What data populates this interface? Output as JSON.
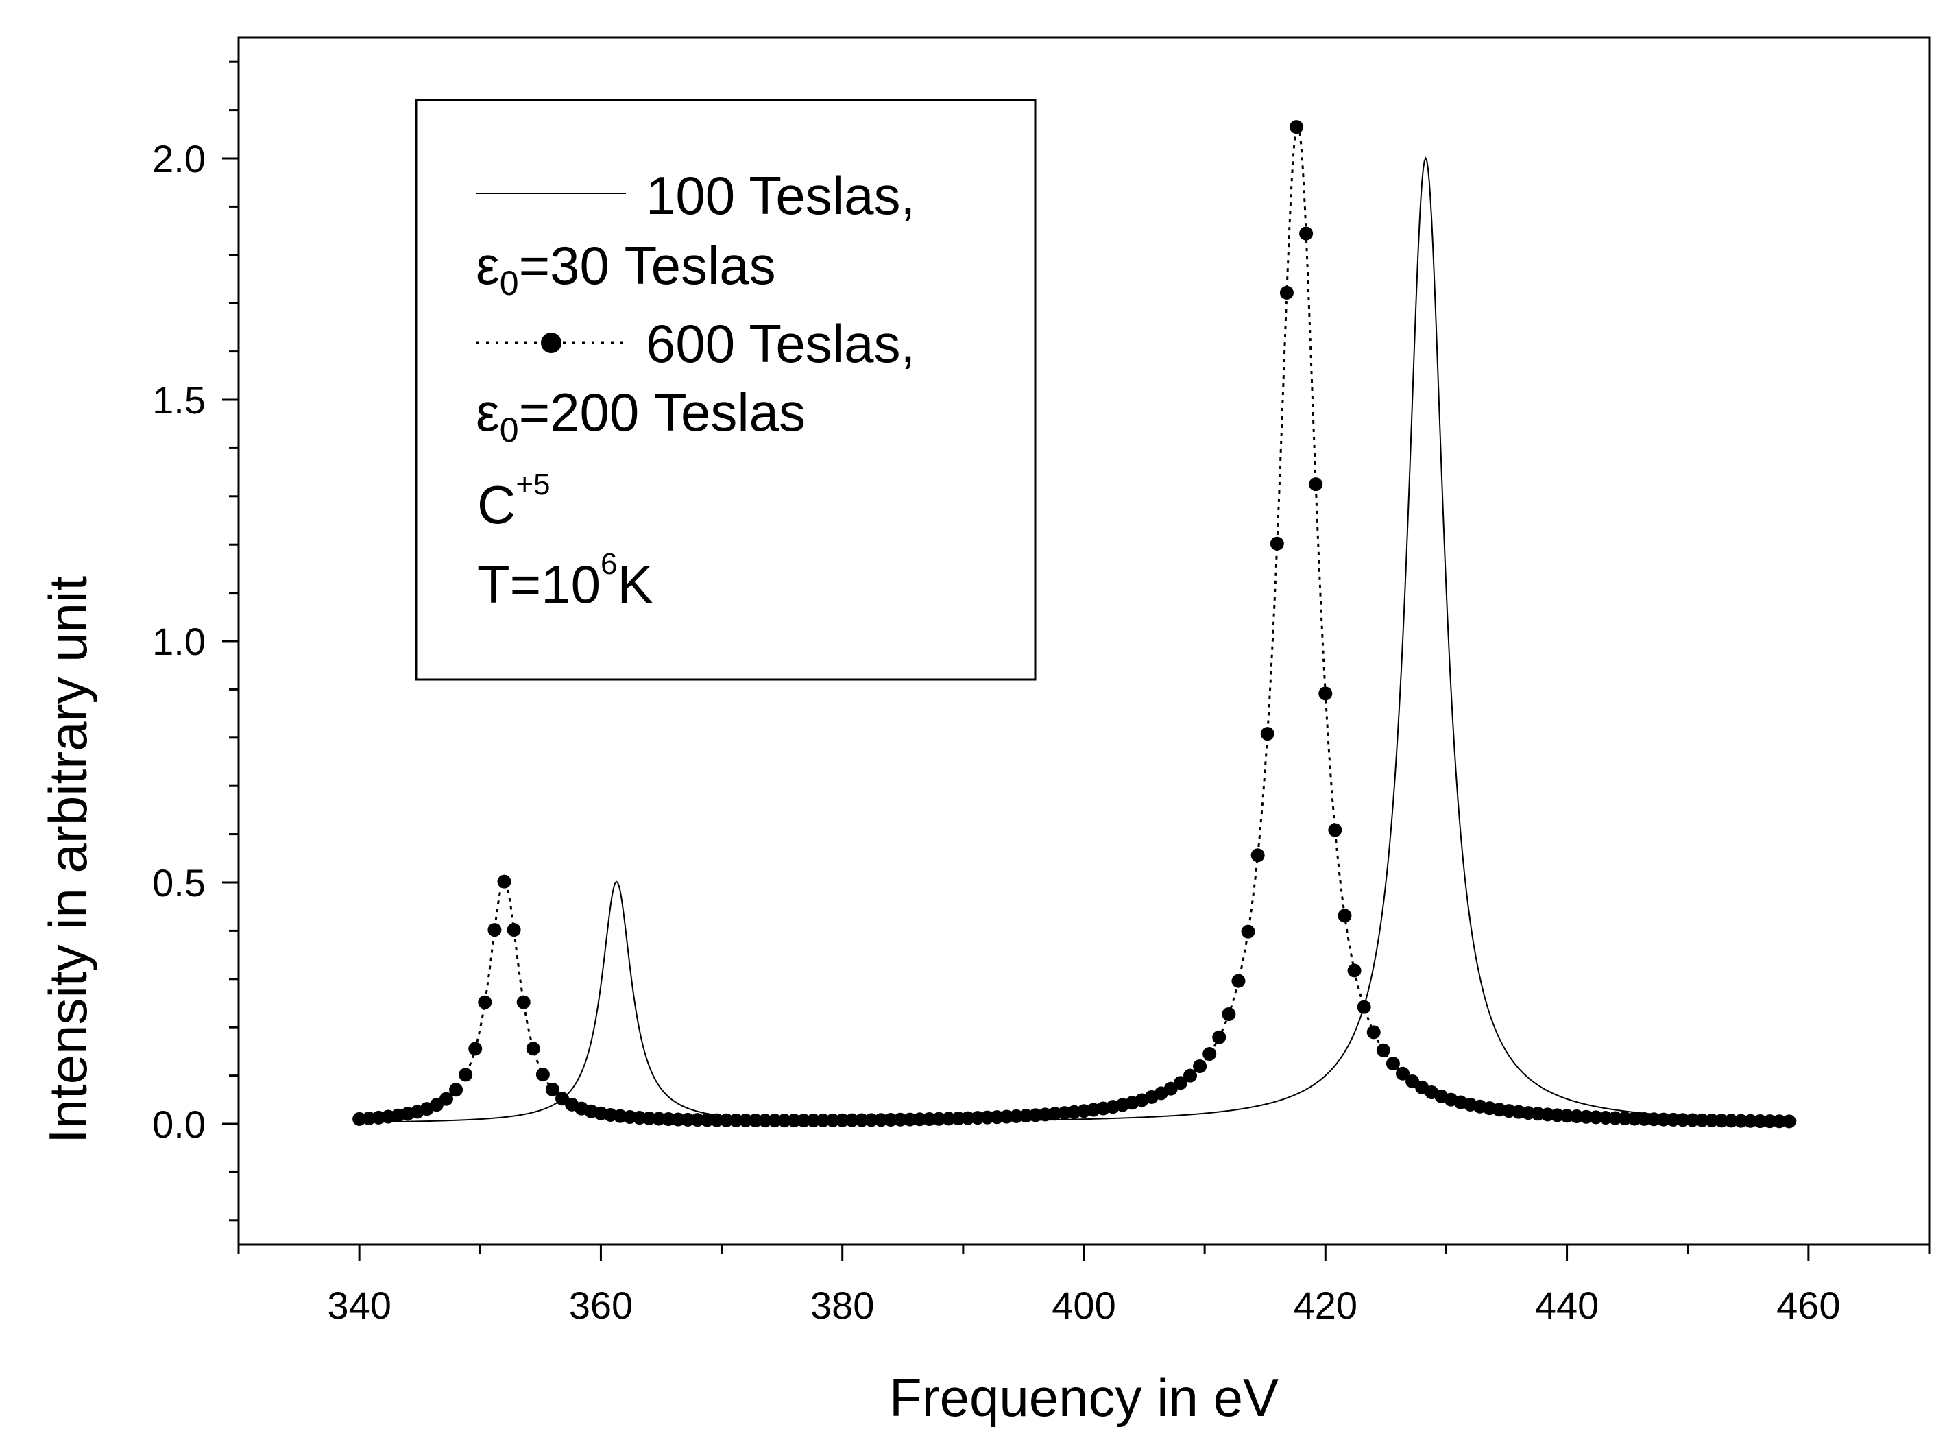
{
  "chart_data": {
    "type": "line",
    "xlabel": "Frequency in eV",
    "ylabel": "Intensity in arbitrary unit",
    "xlim": [
      330,
      470
    ],
    "ylim": [
      -0.25,
      2.25
    ],
    "x_ticks": [
      "340",
      "360",
      "380",
      "400",
      "420",
      "440",
      "460"
    ],
    "y_ticks": [
      "0.0",
      "0.5",
      "1.0",
      "1.5",
      "2.0"
    ],
    "grid": false,
    "legend_position": "top-left",
    "legend": {
      "series1_line1": "100 Teslas,",
      "series1_line2_base": "ε",
      "series1_line2_sub": "0",
      "series1_line2_rest": "=30 Teslas",
      "series2_line1": "600 Teslas,",
      "series2_line2_base": "ε",
      "series2_line2_sub": "0",
      "series2_line2_rest": "=200 Teslas",
      "ion_base": "C",
      "ion_sup": "+5",
      "temp_base": "T=10",
      "temp_sup": "6",
      "temp_rest": "K"
    },
    "series": [
      {
        "name": "100 Teslas, ε0=30 Teslas",
        "style": "solid-thin",
        "color": "#000000",
        "peaks": [
          {
            "center": 361.3,
            "height": 0.5,
            "half_width": 1.5
          },
          {
            "center": 428.3,
            "height": 2.0,
            "half_width": 1.9
          }
        ],
        "x_range": [
          340,
          459
        ]
      },
      {
        "name": "600 Teslas, ε0=200 Teslas",
        "style": "dotted-markers",
        "color": "#000000",
        "peaks": [
          {
            "center": 352.0,
            "height": 0.5,
            "half_width": 1.6
          },
          {
            "center": 417.7,
            "height": 2.07,
            "half_width": 2.0
          }
        ],
        "x_range": [
          340,
          459
        ],
        "marker_step": 0.8
      }
    ]
  }
}
